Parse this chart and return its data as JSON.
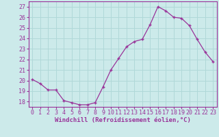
{
  "x": [
    0,
    1,
    2,
    3,
    4,
    5,
    6,
    7,
    8,
    9,
    10,
    11,
    12,
    13,
    14,
    15,
    16,
    17,
    18,
    19,
    20,
    21,
    22,
    23
  ],
  "y": [
    20.1,
    19.7,
    19.1,
    19.1,
    18.1,
    17.9,
    17.7,
    17.7,
    17.9,
    19.4,
    21.0,
    22.1,
    23.2,
    23.7,
    23.9,
    25.3,
    27.0,
    26.6,
    26.0,
    25.9,
    25.2,
    23.9,
    22.7,
    21.8
  ],
  "line_color": "#993399",
  "marker": "+",
  "marker_size": 3,
  "bg_color": "#cceaea",
  "grid_color": "#b0d8d8",
  "ylabel_ticks": [
    18,
    19,
    20,
    21,
    22,
    23,
    24,
    25,
    26,
    27
  ],
  "xlabel": "Windchill (Refroidissement éolien,°C)",
  "xlabel_fontsize": 6.5,
  "tick_fontsize": 6,
  "ylim": [
    17.5,
    27.5
  ],
  "xlim": [
    -0.5,
    23.5
  ]
}
